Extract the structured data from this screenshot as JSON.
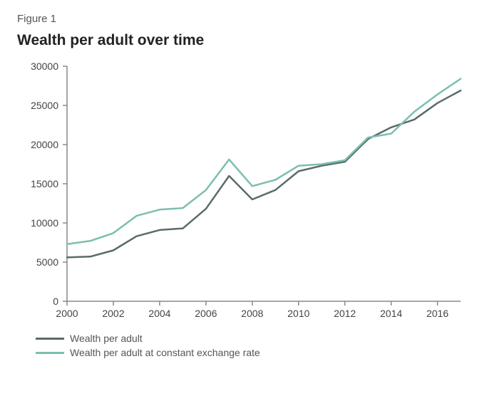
{
  "figure_label": "Figure 1",
  "title": "Wealth per adult over time",
  "chart": {
    "type": "line",
    "background_color": "#ffffff",
    "axis_color": "#888888",
    "tick_color": "#888888",
    "tick_font_size": 14,
    "title_font_size": 21,
    "label_font_size": 15,
    "line_width": 2.5,
    "x": {
      "min": 2000,
      "max": 2017,
      "ticks": [
        2000,
        2002,
        2004,
        2006,
        2008,
        2010,
        2012,
        2014,
        2016
      ]
    },
    "y": {
      "min": 0,
      "max": 30000,
      "ticks": [
        0,
        5000,
        10000,
        15000,
        20000,
        25000,
        30000
      ]
    },
    "series": [
      {
        "id": "wealth_per_adult",
        "label": "Wealth per adult",
        "color": "#5a6b6b",
        "x": [
          2000,
          2001,
          2002,
          2003,
          2004,
          2005,
          2006,
          2007,
          2008,
          2009,
          2010,
          2011,
          2012,
          2013,
          2014,
          2015,
          2016,
          2017
        ],
        "y": [
          5600,
          5700,
          6500,
          8300,
          9100,
          9300,
          11800,
          16000,
          13000,
          14200,
          16600,
          17300,
          17800,
          20700,
          22200,
          23200,
          25300,
          26900
        ]
      },
      {
        "id": "wealth_constant_rate",
        "label": "Wealth per adult at constant exchange rate",
        "color": "#7bbfb0",
        "x": [
          2000,
          2001,
          2002,
          2003,
          2004,
          2005,
          2006,
          2007,
          2008,
          2009,
          2010,
          2011,
          2012,
          2013,
          2014,
          2015,
          2016,
          2017
        ],
        "y": [
          7300,
          7700,
          8700,
          10900,
          11700,
          11900,
          14200,
          18100,
          14700,
          15500,
          17300,
          17500,
          18000,
          20900,
          21400,
          24200,
          26400,
          28400
        ]
      }
    ]
  },
  "legend": {
    "position": "below",
    "font_size": 14,
    "text_color": "#555555"
  }
}
